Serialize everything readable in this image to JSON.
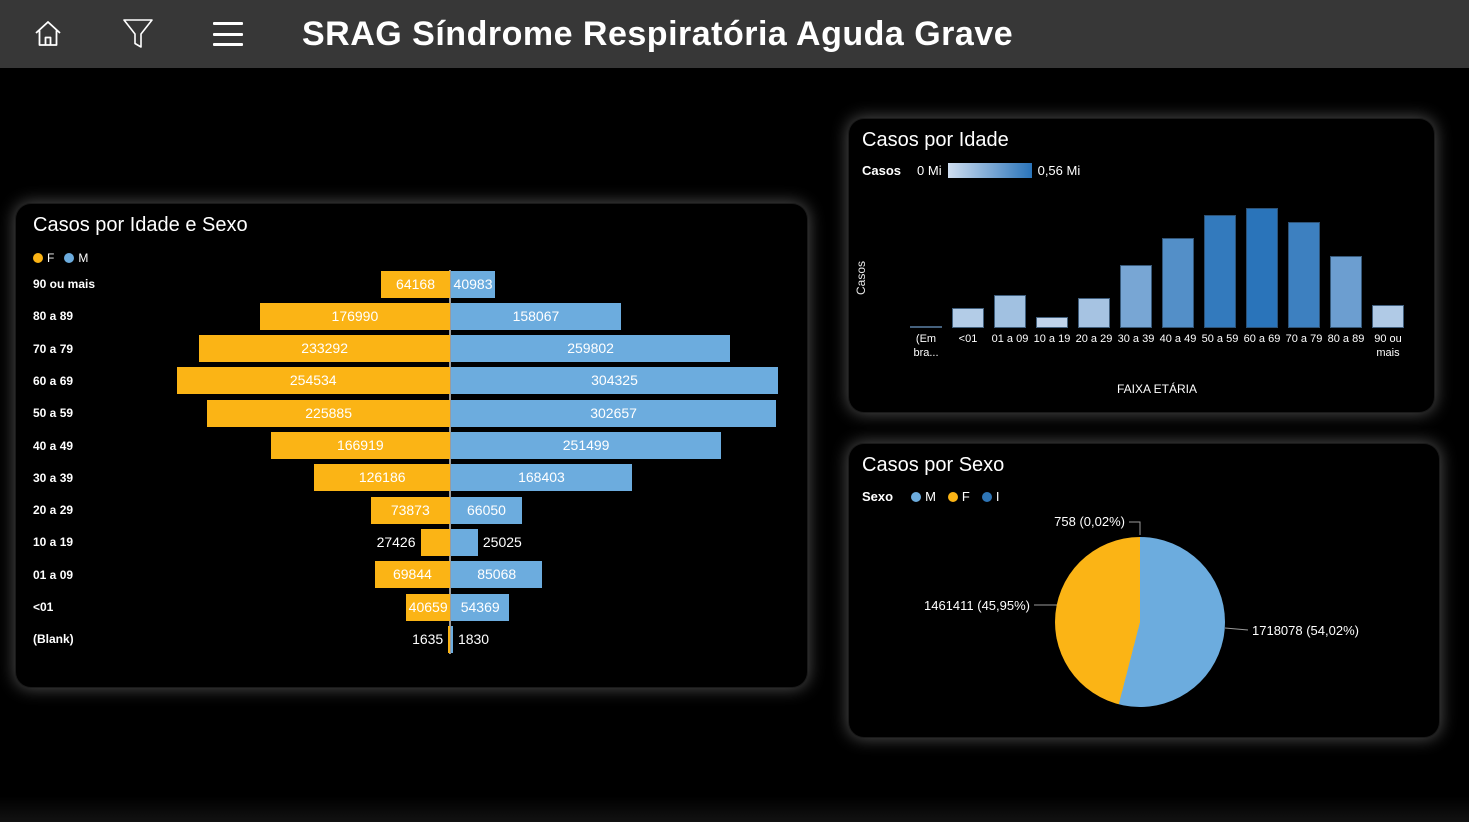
{
  "header": {
    "title": "SRAG Síndrome Respiratória Aguda Grave"
  },
  "colors": {
    "female": "#FBB415",
    "male": "#6CACDE",
    "indeterminate": "#2E75B6",
    "bar_scale_min": "#CFDEF0",
    "bar_scale_max": "#2A74BA",
    "axis_line": "#9B9B9B",
    "callout_line": "#9A9A9A"
  },
  "panels": {
    "idade_sexo": {
      "title": "Casos por Idade e Sexo",
      "legend": [
        {
          "label": "F",
          "color_key": "female"
        },
        {
          "label": "M",
          "color_key": "male"
        }
      ]
    },
    "idade": {
      "title": "Casos por Idade",
      "legend_label": "Casos",
      "legend_min": "0 Mi",
      "legend_max": "0,56 Mi"
    },
    "sexo": {
      "title": "Casos por Sexo",
      "legend_label": "Sexo",
      "legend": [
        {
          "label": "M",
          "color_key": "male"
        },
        {
          "label": "F",
          "color_key": "female"
        },
        {
          "label": "I",
          "color_key": "indeterminate"
        }
      ]
    }
  },
  "chart_data": [
    {
      "id": "casos_por_idade_e_sexo",
      "type": "bar",
      "subtype": "diverging-horizontal-tornado",
      "title": "Casos por Idade e Sexo",
      "categories": [
        "90 ou mais",
        "80 a 89",
        "70 a 79",
        "60 a 69",
        "50 a 59",
        "40 a 49",
        "30 a 39",
        "20 a 29",
        "10 a 19",
        "01 a 09",
        "<01",
        "(Blank)"
      ],
      "series": [
        {
          "name": "F",
          "color_key": "female",
          "direction": "left",
          "values": [
            64168,
            176990,
            233292,
            254534,
            225885,
            166919,
            126186,
            73873,
            27426,
            69844,
            40659,
            1635
          ]
        },
        {
          "name": "M",
          "color_key": "male",
          "direction": "right",
          "values": [
            40983,
            158067,
            259802,
            304325,
            302657,
            251499,
            168403,
            66050,
            25025,
            85068,
            54369,
            1830
          ]
        }
      ],
      "data_labels": "shown, outside bar when bar too narrow",
      "legend_position": "top-left"
    },
    {
      "id": "casos_por_idade",
      "type": "bar",
      "title": "Casos por Idade",
      "categories": [
        "(Em bra...",
        "<01",
        "01 a 09",
        "10 a 19",
        "20 a 29",
        "30 a 39",
        "40 a 49",
        "50 a 59",
        "60 a 69",
        "70 a 79",
        "80 a 89",
        "90 ou mais"
      ],
      "values": [
        3465,
        95028,
        154912,
        52451,
        139923,
        294589,
        418418,
        528542,
        558859,
        493094,
        335057,
        105151
      ],
      "values_note": "estimated from bar heights; bars are unlabeled, colored by value on a 0 Mi to 0,56 Mi blue scale",
      "xlabel": "FAIXA ETÁRIA",
      "ylabel": "Casos",
      "ylim": [
        0,
        560000
      ],
      "grid": false,
      "color_scale": {
        "min_label": "0 Mi",
        "max_label": "0,56 Mi"
      },
      "legend_position": "top-left"
    },
    {
      "id": "casos_por_sexo",
      "type": "pie",
      "title": "Casos por Sexo",
      "slices": [
        {
          "label": "M",
          "value": 1718078,
          "pct": 54.02,
          "display": "1718078 (54,02%)",
          "color_key": "male"
        },
        {
          "label": "F",
          "value": 1461411,
          "pct": 45.95,
          "display": "1461411 (45,95%)",
          "color_key": "female"
        },
        {
          "label": "I",
          "value": 758,
          "pct": 0.02,
          "display": "758 (0,02%)",
          "color_key": "indeterminate"
        }
      ],
      "start_angle_deg": 0,
      "clockwise": true,
      "legend_position": "top-left"
    }
  ]
}
